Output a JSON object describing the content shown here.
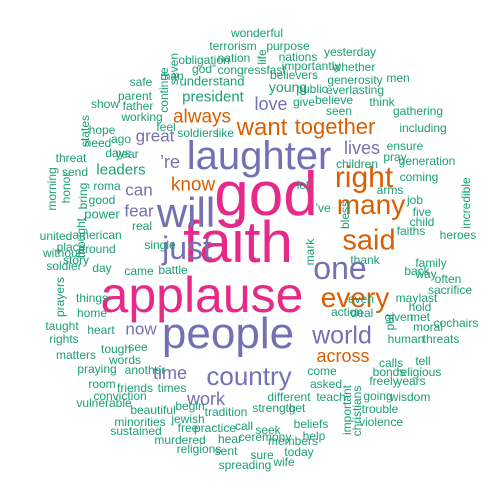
{
  "palette": {
    "pink": "#e7298a",
    "purple": "#7570b3",
    "orange": "#d95f02",
    "green": "#1b9e77"
  },
  "words": [
    {
      "text": "faith",
      "color": "pink"
    },
    {
      "text": "god",
      "color": "pink"
    },
    {
      "text": "applause",
      "color": "pink"
    },
    {
      "text": "laughter",
      "color": "purple"
    },
    {
      "text": "people",
      "color": "purple"
    },
    {
      "text": "will",
      "color": "purple"
    },
    {
      "text": "just",
      "color": "purple"
    },
    {
      "text": "one",
      "color": "purple"
    },
    {
      "text": "country",
      "color": "purple"
    },
    {
      "text": "world",
      "color": "purple"
    },
    {
      "text": "said",
      "color": "orange"
    },
    {
      "text": "every",
      "color": "orange"
    },
    {
      "text": "right",
      "color": "orange"
    },
    {
      "text": "many",
      "color": "orange"
    },
    {
      "text": "want",
      "color": "orange"
    },
    {
      "text": "together",
      "color": "orange"
    },
    {
      "text": "across",
      "color": "orange"
    },
    {
      "text": "always",
      "color": "orange"
    },
    {
      "text": "know",
      "color": "orange"
    },
    {
      "text": "’re",
      "color": "purple"
    },
    {
      "text": "love",
      "color": "purple"
    },
    {
      "text": "lives",
      "color": "purple"
    },
    {
      "text": "time",
      "color": "purple"
    },
    {
      "text": "work",
      "color": "purple"
    },
    {
      "text": "great",
      "color": "purple"
    },
    {
      "text": "fear",
      "color": "purple"
    },
    {
      "text": "can",
      "color": "purple"
    },
    {
      "text": "now",
      "color": "purple"
    },
    {
      "text": "president",
      "color": "green"
    },
    {
      "text": "leaders",
      "color": "green"
    },
    {
      "text": "young",
      "color": "green"
    },
    {
      "text": "understand",
      "color": "green"
    },
    {
      "text": "working",
      "color": "green"
    },
    {
      "text": "year",
      "color": "green"
    },
    {
      "text": "roma",
      "color": "green"
    },
    {
      "text": "good",
      "color": "green"
    },
    {
      "text": "power",
      "color": "green"
    },
    {
      "text": "american",
      "color": "green"
    },
    {
      "text": "around",
      "color": "green"
    },
    {
      "text": "single",
      "color": "green"
    },
    {
      "text": "day",
      "color": "green"
    },
    {
      "text": "things",
      "color": "green"
    },
    {
      "text": "home",
      "color": "green"
    },
    {
      "text": "heart",
      "color": "green"
    },
    {
      "text": "tough",
      "color": "green"
    },
    {
      "text": "see",
      "color": "green"
    },
    {
      "text": "words",
      "color": "green"
    },
    {
      "text": "times",
      "color": "green"
    },
    {
      "text": "tradition",
      "color": "green"
    },
    {
      "text": "strength",
      "color": "green"
    },
    {
      "text": "different",
      "color": "green"
    },
    {
      "text": "come",
      "color": "green"
    },
    {
      "text": "deal",
      "color": "green"
    },
    {
      "text": "thank",
      "color": "green"
    },
    {
      "text": "even",
      "color": "green"
    },
    {
      "text": "seen",
      "color": "green"
    },
    {
      "text": "give",
      "color": "green"
    },
    {
      "text": "real",
      "color": "green"
    },
    {
      "text": "bless",
      "color": "green"
    },
    {
      "text": "’ve",
      "color": "green"
    },
    {
      "text": "action",
      "color": "green"
    },
    {
      "text": "asked",
      "color": "green"
    },
    {
      "text": "teach",
      "color": "green"
    },
    {
      "text": "seek",
      "color": "green"
    },
    {
      "text": "call",
      "color": "green"
    },
    {
      "text": "friends",
      "color": "green"
    },
    {
      "text": "room",
      "color": "green"
    },
    {
      "text": "beautiful",
      "color": "green"
    },
    {
      "text": "conviction",
      "color": "green"
    },
    {
      "text": "begin",
      "color": "green"
    },
    {
      "text": "practice",
      "color": "green"
    },
    {
      "text": "jewish",
      "color": "green"
    },
    {
      "text": "minorities",
      "color": "green"
    },
    {
      "text": "free",
      "color": "green"
    },
    {
      "text": "religions",
      "color": "green"
    },
    {
      "text": "ceremony",
      "color": "green"
    },
    {
      "text": "sent",
      "color": "green"
    },
    {
      "text": "sure",
      "color": "green"
    },
    {
      "text": "spreading",
      "color": "green"
    },
    {
      "text": "wife",
      "color": "green"
    },
    {
      "text": "murdered",
      "color": "green"
    },
    {
      "text": "hear",
      "color": "green"
    },
    {
      "text": "members",
      "color": "green"
    },
    {
      "text": "today",
      "color": "green"
    },
    {
      "text": "help",
      "color": "green"
    },
    {
      "text": "beliefs",
      "color": "green"
    },
    {
      "text": "get",
      "color": "green"
    },
    {
      "text": "vulnerable",
      "color": "green"
    },
    {
      "text": "sustained",
      "color": "green"
    },
    {
      "text": "matters",
      "color": "green"
    },
    {
      "text": "praying",
      "color": "green"
    },
    {
      "text": "another",
      "color": "green"
    },
    {
      "text": "rights",
      "color": "green"
    },
    {
      "text": "taught",
      "color": "green"
    },
    {
      "text": "prayers",
      "color": "green"
    },
    {
      "text": "soldier",
      "color": "green"
    },
    {
      "text": "without",
      "color": "green"
    },
    {
      "text": "united",
      "color": "green"
    },
    {
      "text": "place",
      "color": "green"
    },
    {
      "text": "story",
      "color": "green"
    },
    {
      "text": "came",
      "color": "green"
    },
    {
      "text": "battle",
      "color": "green"
    },
    {
      "text": "wonderful",
      "color": "green"
    },
    {
      "text": "terrorism",
      "color": "green"
    },
    {
      "text": "purpose",
      "color": "green"
    },
    {
      "text": "nation",
      "color": "green"
    },
    {
      "text": "nations",
      "color": "green"
    },
    {
      "text": "yesterday",
      "color": "green"
    },
    {
      "text": "obligation",
      "color": "green"
    },
    {
      "text": "congress",
      "color": "green"
    },
    {
      "text": "whether",
      "color": "green"
    },
    {
      "text": "god”",
      "color": "green"
    },
    {
      "text": "importantly",
      "color": "green"
    },
    {
      "text": "believers",
      "color": "green"
    },
    {
      "text": "generosity",
      "color": "green"
    },
    {
      "text": "everlasting",
      "color": "green"
    },
    {
      "text": "public",
      "color": "green"
    },
    {
      "text": "men",
      "color": "green"
    },
    {
      "text": "believe",
      "color": "green"
    },
    {
      "text": "think",
      "color": "green"
    },
    {
      "text": "gathering",
      "color": "green"
    },
    {
      "text": "parent",
      "color": "green"
    },
    {
      "text": "father",
      "color": "green"
    },
    {
      "text": "safe",
      "color": "green"
    },
    {
      "text": "ago",
      "color": "green"
    },
    {
      "text": "days",
      "color": "green"
    },
    {
      "text": "man",
      "color": "green"
    },
    {
      "text": "fast",
      "color": "green"
    },
    {
      "text": "show",
      "color": "green"
    },
    {
      "text": "hope",
      "color": "green"
    },
    {
      "text": "need",
      "color": "green"
    },
    {
      "text": "send",
      "color": "green"
    },
    {
      "text": "threat",
      "color": "green"
    },
    {
      "text": "feel",
      "color": "green"
    },
    {
      "text": "soldiers",
      "color": "green"
    },
    {
      "text": "like",
      "color": "green"
    },
    {
      "text": "children",
      "color": "green"
    },
    {
      "text": "pray",
      "color": "green"
    },
    {
      "text": "ensure",
      "color": "green"
    },
    {
      "text": "generation",
      "color": "green"
    },
    {
      "text": "including",
      "color": "green"
    },
    {
      "text": "coming",
      "color": "green"
    },
    {
      "text": "arms",
      "color": "green"
    },
    {
      "text": "job",
      "color": "green"
    },
    {
      "text": "five",
      "color": "green"
    },
    {
      "text": "child",
      "color": "green"
    },
    {
      "text": "family",
      "color": "green"
    },
    {
      "text": "back",
      "color": "green"
    },
    {
      "text": "heroes",
      "color": "green"
    },
    {
      "text": "faiths",
      "color": "green"
    },
    {
      "text": "way",
      "color": "green"
    },
    {
      "text": "often",
      "color": "green"
    },
    {
      "text": "sacrifice",
      "color": "green"
    },
    {
      "text": "hold",
      "color": "green"
    },
    {
      "text": "last",
      "color": "green"
    },
    {
      "text": "may",
      "color": "green"
    },
    {
      "text": "given",
      "color": "green"
    },
    {
      "text": "met",
      "color": "green"
    },
    {
      "text": "moral",
      "color": "green"
    },
    {
      "text": "human",
      "color": "green"
    },
    {
      "text": "threats",
      "color": "green"
    },
    {
      "text": "cochairs",
      "color": "green"
    },
    {
      "text": "tell",
      "color": "green"
    },
    {
      "text": "calls",
      "color": "green"
    },
    {
      "text": "religious",
      "color": "green"
    },
    {
      "text": "bonds",
      "color": "green"
    },
    {
      "text": "freely",
      "color": "green"
    },
    {
      "text": "years",
      "color": "green"
    },
    {
      "text": "going",
      "color": "green"
    },
    {
      "text": "wisdom",
      "color": "green"
    },
    {
      "text": "trouble",
      "color": "green"
    },
    {
      "text": "violence",
      "color": "green"
    },
    {
      "text": "mark",
      "color": "green"
    },
    {
      "text": "let",
      "color": "green"
    },
    {
      "text": "put",
      "color": "green"
    },
    {
      "text": "important",
      "color": "green"
    },
    {
      "text": "christians",
      "color": "green"
    },
    {
      "text": "incredible",
      "color": "green"
    },
    {
      "text": "morning",
      "color": "green"
    },
    {
      "text": "honor",
      "color": "green"
    },
    {
      "text": "states",
      "color": "green"
    },
    {
      "text": "continue",
      "color": "green"
    },
    {
      "text": "seven",
      "color": "green"
    },
    {
      "text": "life",
      "color": "green"
    },
    {
      "text": "bring",
      "color": "green"
    },
    {
      "text": "thought",
      "color": "green"
    }
  ]
}
